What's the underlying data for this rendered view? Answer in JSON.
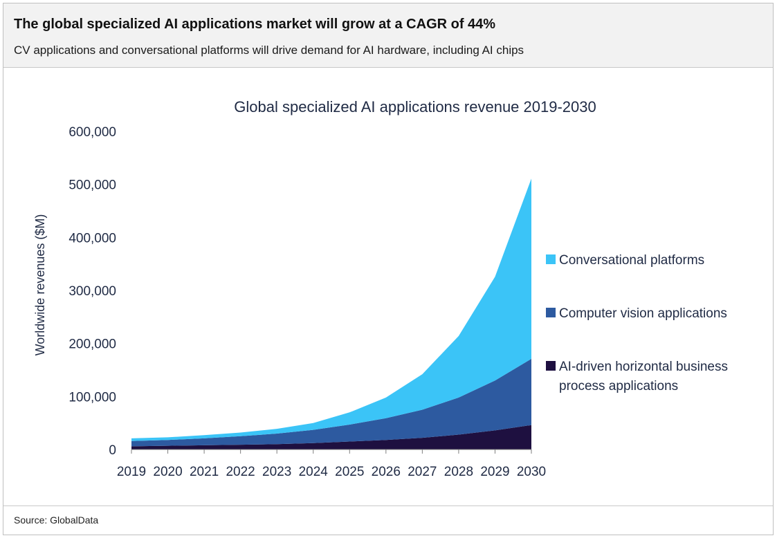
{
  "header": {
    "title": "The global specialized AI applications market will grow at a CAGR of 44%",
    "subtitle": "CV applications and conversational platforms will drive demand for AI hardware, including AI chips"
  },
  "footer": {
    "source": "Source: GlobalData"
  },
  "colors": {
    "conversational": "#3bc4f7",
    "computer_vision": "#2d5aa0",
    "business_process": "#1e1040",
    "header_bg": "#f2f2f2",
    "text": "#1f2a44"
  },
  "chart_data": {
    "type": "area",
    "stacked": true,
    "title": "Global specialized AI applications revenue 2019-2030",
    "ylabel": "Worldwide revenues  ($M)",
    "xlabel": "",
    "x": [
      "2019",
      "2020",
      "2021",
      "2022",
      "2023",
      "2024",
      "2025",
      "2026",
      "2027",
      "2028",
      "2029",
      "2030"
    ],
    "ylim": [
      0,
      600000
    ],
    "yticks": [
      0,
      100000,
      200000,
      300000,
      400000,
      500000,
      600000
    ],
    "ytick_labels": [
      "0",
      "100,000",
      "200,000",
      "300,000",
      "400,000",
      "500,000",
      "600,000"
    ],
    "legend_position": "right",
    "grid": false,
    "series": [
      {
        "name": "AI-driven horizontal business process applications",
        "color_key": "business_process",
        "values": [
          6000,
          7000,
          8000,
          9000,
          10000,
          12000,
          15000,
          18000,
          22000,
          28000,
          36000,
          46000
        ]
      },
      {
        "name": "Computer vision applications",
        "color_key": "computer_vision",
        "values": [
          10000,
          11000,
          13000,
          16000,
          20000,
          25000,
          32000,
          41000,
          53000,
          70000,
          94000,
          125000
        ]
      },
      {
        "name": "Conversational platforms",
        "color_key": "conversational",
        "values": [
          5000,
          5000,
          6000,
          7000,
          9000,
          13000,
          23000,
          39000,
          67000,
          116000,
          196000,
          340000
        ]
      }
    ],
    "legend_order": [
      2,
      1,
      0
    ]
  }
}
